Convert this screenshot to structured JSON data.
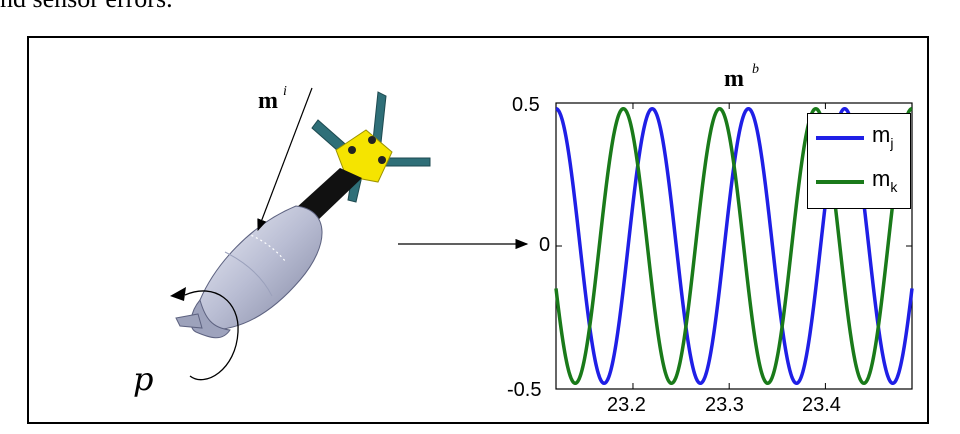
{
  "top_text": "nd sensor errors.",
  "figure": {
    "inertial_vector_label": "m",
    "inertial_vector_sup": "i",
    "roll_label": "p",
    "body_vector_label": "m",
    "body_vector_sup": "b"
  },
  "chart_data": {
    "type": "line",
    "title": "m^b",
    "xlim": [
      23.12,
      23.49
    ],
    "ylim": [
      -0.5,
      0.5
    ],
    "x_ticks": [
      "23.2",
      "23.3",
      "23.4"
    ],
    "y_ticks": [
      "0.5",
      "0",
      "-0.5"
    ],
    "legend_position": "top-right",
    "series": [
      {
        "name": "m",
        "subscript": "j",
        "color": "#1f1fe6",
        "amplitude": 0.48,
        "period": 0.1,
        "first_peak_x": 23.22
      },
      {
        "name": "m",
        "subscript": "k",
        "color": "#1a7a1a",
        "amplitude": 0.48,
        "period": 0.1,
        "first_peak_x": 23.19
      }
    ]
  }
}
